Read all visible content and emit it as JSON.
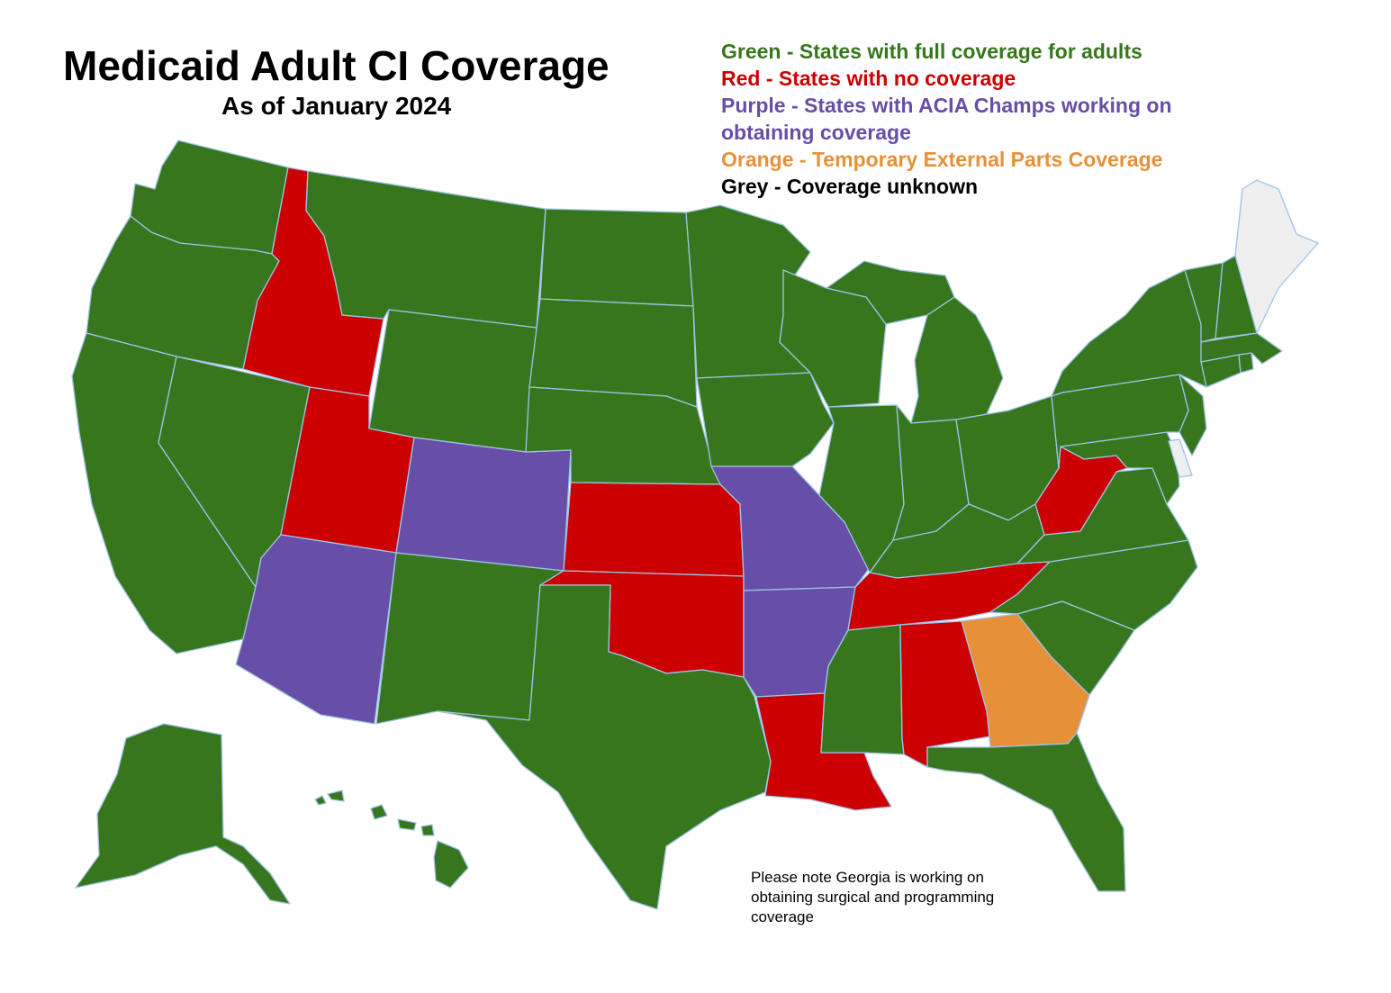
{
  "title": "Medicaid Adult CI Coverage",
  "subtitle": "As of January 2024",
  "legend": [
    {
      "text": "Green - States with  full coverage for adults",
      "color": "#38761d"
    },
    {
      "text": "Red - States with no coverage",
      "color": "#cc0000"
    },
    {
      "text": "Purple - States with ACIA Champs working on obtaining coverage",
      "color": "#674ea7"
    },
    {
      "text": "Orange - Temporary External Parts Coverage",
      "color": "#e69138"
    },
    {
      "text": "Grey - Coverage unknown",
      "color": "#000000"
    }
  ],
  "note": "Please note Georgia is working on obtaining surgical and programming coverage",
  "colors": {
    "green": "#38761d",
    "red": "#cc0000",
    "purple": "#674ea7",
    "orange": "#e69138",
    "grey": "#efefef",
    "border": "#9fc3e8"
  },
  "states": {
    "WA": "green",
    "OR": "green",
    "CA": "green",
    "NV": "green",
    "ID": "red",
    "MT": "green",
    "WY": "green",
    "UT": "red",
    "AZ": "purple",
    "CO": "purple",
    "NM": "green",
    "ND": "green",
    "SD": "green",
    "NE": "green",
    "KS": "red",
    "OK": "red",
    "TX": "green",
    "MN": "green",
    "IA": "green",
    "MO": "purple",
    "AR": "purple",
    "LA": "red",
    "WI": "green",
    "IL": "green",
    "MI": "green",
    "IN": "green",
    "OH": "green",
    "KY": "green",
    "TN": "red",
    "MS": "green",
    "AL": "red",
    "GA": "orange",
    "FL": "green",
    "SC": "green",
    "NC": "green",
    "VA": "green",
    "WV": "red",
    "MD": "green",
    "DE": "grey",
    "NJ": "green",
    "PA": "green",
    "NY": "green",
    "CT": "green",
    "RI": "green",
    "MA": "green",
    "VT": "green",
    "NH": "green",
    "ME": "grey",
    "AK": "green",
    "HI": "green"
  }
}
